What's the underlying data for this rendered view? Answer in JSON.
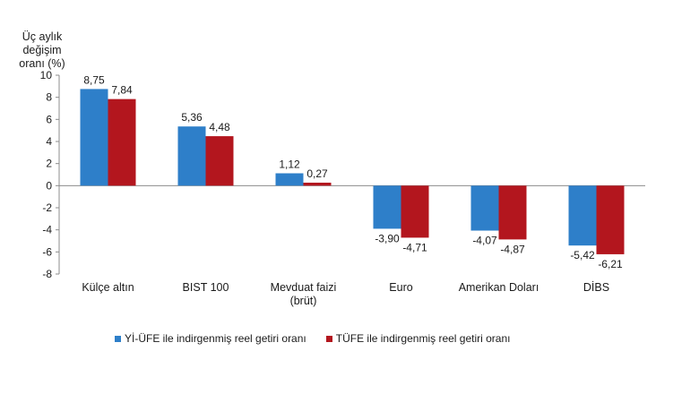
{
  "chart_data": {
    "type": "bar",
    "ylabel": "Üç aylık değişim oranı (%)",
    "ylabel_lines": [
      "Üç aylık değişim",
      "oranı (%)"
    ],
    "ylim": [
      -8,
      10
    ],
    "yticks": [
      -8,
      -6,
      -4,
      -2,
      0,
      2,
      4,
      6,
      8,
      10
    ],
    "categories": [
      "Külçe altın",
      "BIST 100",
      "Mevduat faizi (brüt)",
      "Euro",
      "Amerikan Doları",
      "DİBS"
    ],
    "category_lines": [
      [
        "Külçe altın"
      ],
      [
        "BIST 100"
      ],
      [
        "Mevduat faizi",
        "(brüt)"
      ],
      [
        "Euro"
      ],
      [
        "Amerikan Doları"
      ],
      [
        "DİBS"
      ]
    ],
    "series": [
      {
        "name": "Yİ-ÜFE ile indirgenmiş reel getiri oranı",
        "color": "#2e7fc9",
        "values": [
          8.75,
          5.36,
          1.12,
          -3.9,
          -4.07,
          -5.42
        ],
        "labels": [
          "8,75",
          "5,36",
          "1,12",
          "-3,90",
          "-4,07",
          "-5,42"
        ]
      },
      {
        "name": "TÜFE ile indirgenmiş reel getiri oranı",
        "color": "#b3161e",
        "values": [
          7.84,
          4.48,
          0.27,
          -4.71,
          -4.87,
          -6.21
        ],
        "labels": [
          "7,84",
          "4,48",
          "0,27",
          "-4,71",
          "-4,87",
          "-6,21"
        ]
      }
    ],
    "grid": false,
    "legend_position": "bottom"
  }
}
